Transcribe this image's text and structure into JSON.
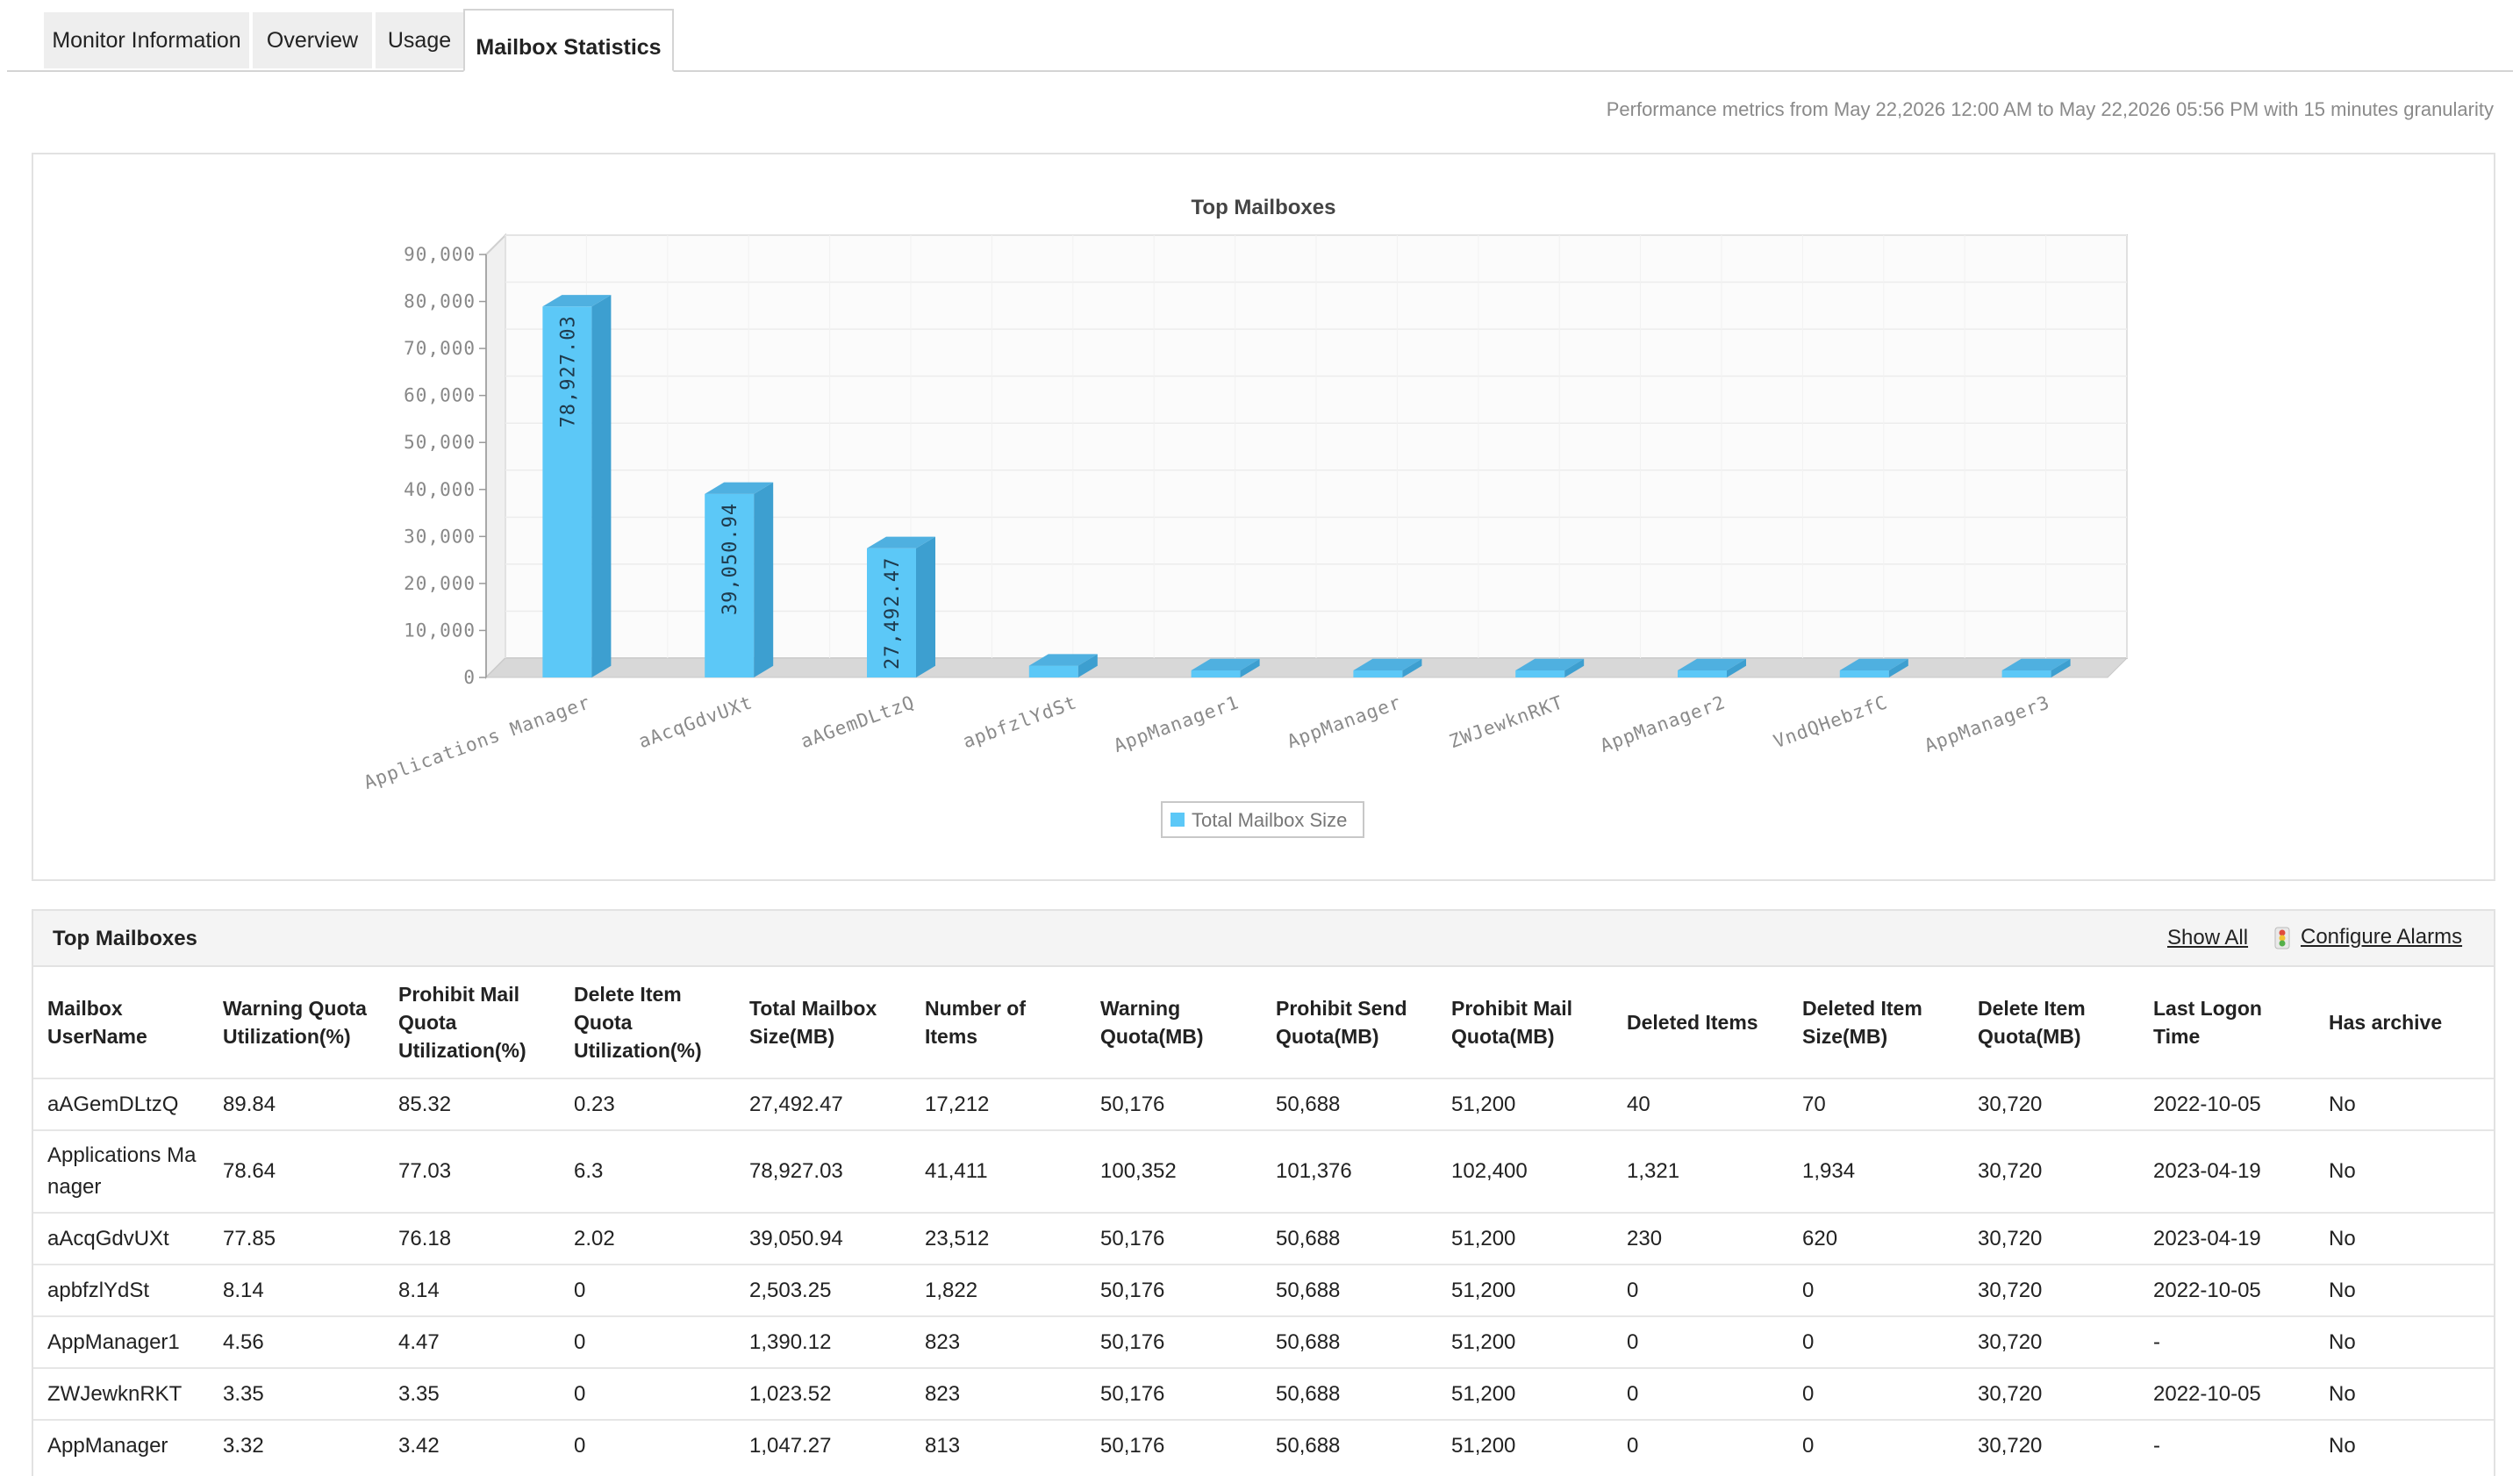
{
  "tabs": [
    {
      "label": "Monitor Information"
    },
    {
      "label": "Overview"
    },
    {
      "label": "Usage"
    },
    {
      "label": "Mailbox Statistics"
    }
  ],
  "performance_note": "Performance metrics from May 22,2026 12:00 AM to May 22,2026 05:56 PM with 15 minutes granularity",
  "colors": {
    "bar": "#5cc8f7",
    "bar_side": "#3d9fd0",
    "bar_top": "#4fb0e0"
  },
  "chart_data": {
    "type": "bar",
    "title": "Top Mailboxes",
    "categories": [
      "Applications Manager",
      "aAcqGdvUXt",
      "aAGemDLtzQ",
      "apbfzlYdSt",
      "AppManager1",
      "AppManager",
      "ZWJewknRKT",
      "AppManager2",
      "VndQHebzfC",
      "AppManager3"
    ],
    "series": [
      {
        "name": "Total Mailbox Size",
        "values": [
          78927.03,
          39050.94,
          27492.47,
          2503.25,
          1390.12,
          1047.27,
          1023.52,
          900,
          850,
          800
        ]
      }
    ],
    "data_labels": [
      "78,927.03",
      "39,050.94",
      "27,492.47"
    ],
    "ylim": [
      0,
      90000
    ],
    "yticks": [
      "0",
      "10,000",
      "20,000",
      "30,000",
      "40,000",
      "50,000",
      "60,000",
      "70,000",
      "80,000",
      "90,000"
    ],
    "xlabel": "",
    "ylabel": "",
    "grid": true,
    "legend": "bottom-center"
  },
  "table": {
    "title": "Top Mailboxes",
    "show_all": "Show All",
    "configure_alarms": "Configure Alarms",
    "columns": [
      "Mailbox UserName",
      "Warning Quota Utilization(%)",
      "Prohibit Mail Quota Utilization(%)",
      "Delete Item Quota Utilization(%)",
      "Total Mailbox Size(MB)",
      "Number of Items",
      "Warning Quota(MB)",
      "Prohibit Send Quota(MB)",
      "Prohibit Mail Quota(MB)",
      "Deleted Items",
      "Deleted Item Size(MB)",
      "Delete Item Quota(MB)",
      "Last Logon Time",
      "Has archive"
    ],
    "rows": [
      [
        "aAGemDLtzQ",
        "89.84",
        "85.32",
        "0.23",
        "27,492.47",
        "17,212",
        "50,176",
        "50,688",
        "51,200",
        "40",
        "70",
        "30,720",
        "2022-10-05",
        "No"
      ],
      [
        "Applications Manager",
        "78.64",
        "77.03",
        "6.3",
        "78,927.03",
        "41,411",
        "100,352",
        "101,376",
        "102,400",
        "1,321",
        "1,934",
        "30,720",
        "2023-04-19",
        "No"
      ],
      [
        "aAcqGdvUXt",
        "77.85",
        "76.18",
        "2.02",
        "39,050.94",
        "23,512",
        "50,176",
        "50,688",
        "51,200",
        "230",
        "620",
        "30,720",
        "2023-04-19",
        "No"
      ],
      [
        "apbfzlYdSt",
        "8.14",
        "8.14",
        "0",
        "2,503.25",
        "1,822",
        "50,176",
        "50,688",
        "51,200",
        "0",
        "0",
        "30,720",
        "2022-10-05",
        "No"
      ],
      [
        "AppManager1",
        "4.56",
        "4.47",
        "0",
        "1,390.12",
        "823",
        "50,176",
        "50,688",
        "51,200",
        "0",
        "0",
        "30,720",
        "-",
        "No"
      ],
      [
        "ZWJewknRKT",
        "3.35",
        "3.35",
        "0",
        "1,023.52",
        "823",
        "50,176",
        "50,688",
        "51,200",
        "0",
        "0",
        "30,720",
        "2022-10-05",
        "No"
      ],
      [
        "AppManager",
        "3.32",
        "3.42",
        "0",
        "1,047.27",
        "813",
        "50,176",
        "50,688",
        "51,200",
        "0",
        "0",
        "30,720",
        "-",
        "No"
      ]
    ]
  }
}
